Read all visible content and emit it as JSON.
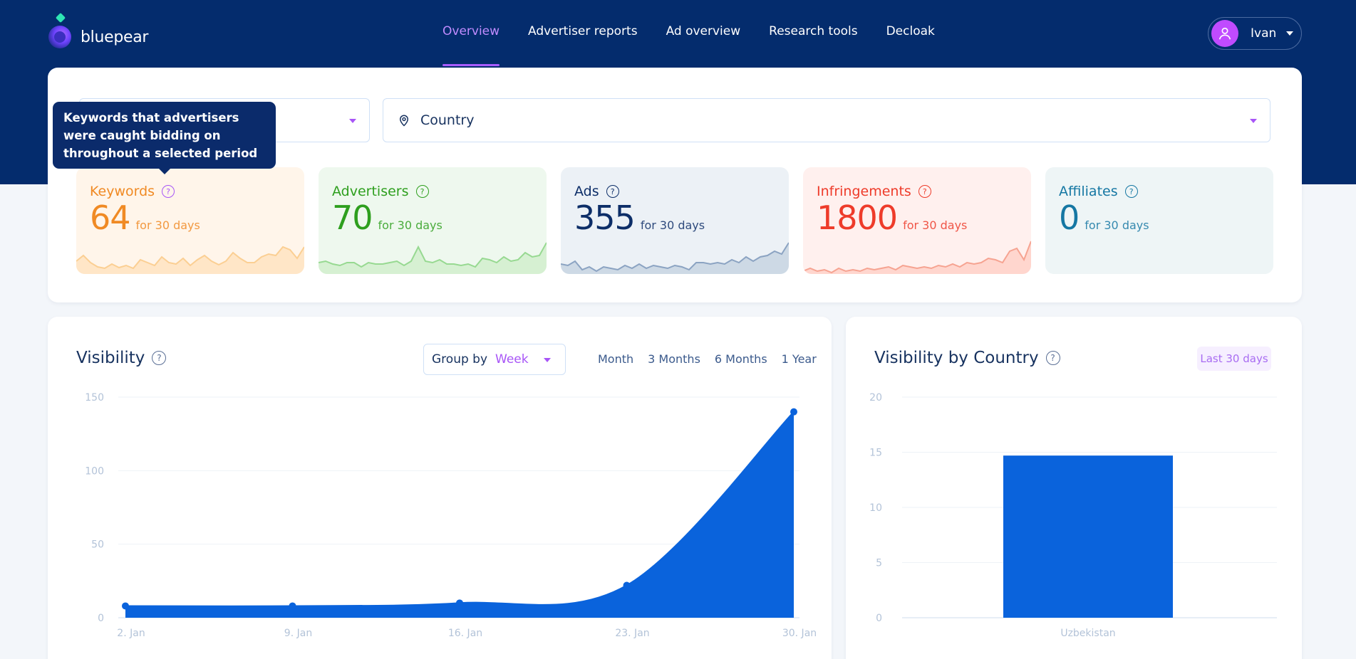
{
  "brand": {
    "name": "bluepear"
  },
  "nav": {
    "items": [
      {
        "label": "Overview",
        "active": true
      },
      {
        "label": "Advertiser reports"
      },
      {
        "label": "Ad overview"
      },
      {
        "label": "Research tools"
      },
      {
        "label": "Decloak"
      }
    ]
  },
  "user": {
    "name": "Ivan"
  },
  "filters": {
    "first_value": "",
    "country_placeholder": "Country"
  },
  "tooltip": {
    "text": "Keywords that advertisers were caught bidding on throughout a selected period"
  },
  "stats": [
    {
      "label": "Keywords",
      "value": "64",
      "period": "for 30 days",
      "color": "#f08a24",
      "bg": "#fff5ea",
      "spark_color": "#fbcf93",
      "fill": "#ffe6c7"
    },
    {
      "label": "Advertisers",
      "value": "70",
      "period": "for 30 days",
      "color": "#2e9f1e",
      "bg": "#eef8ee",
      "spark_color": "#97d991",
      "fill": "#d6f0d2"
    },
    {
      "label": "Ads",
      "value": "355",
      "period": "for 30 days",
      "color": "#0d2e68",
      "bg": "#ecf1f6",
      "spark_color": "#8ba3c2",
      "fill": "#cdd9e5"
    },
    {
      "label": "Infringements",
      "value": "1800",
      "period": "for 30 days",
      "color": "#ee3b2a",
      "bg": "#fff0ee",
      "spark_color": "#f6a391",
      "fill": "#ffd6ce"
    },
    {
      "label": "Affiliates",
      "value": "0",
      "period": "for 30 days",
      "color": "#1577a3",
      "bg": "#eef5f6",
      "spark_color": null,
      "fill": null
    }
  ],
  "visibility": {
    "title": "Visibility",
    "group_by_label": "Group by",
    "group_by_value": "Week",
    "ranges": [
      "Month",
      "3 Months",
      "6 Months",
      "1 Year"
    ],
    "accent": "#0a63dc"
  },
  "country": {
    "title": "Visibility by Country",
    "period_button": "Last 30 days"
  },
  "chart_data": [
    {
      "type": "area",
      "title": "Visibility",
      "x": [
        "2. Jan",
        "9. Jan",
        "16. Jan",
        "23. Jan",
        "30. Jan"
      ],
      "y": [
        8,
        8,
        10,
        22,
        140
      ],
      "ylim": [
        0,
        150
      ],
      "yticks": [
        0,
        50,
        100,
        150
      ],
      "grid": true
    },
    {
      "type": "bar",
      "title": "Visibility by Country",
      "categories": [
        "Uzbekistan"
      ],
      "values": [
        14.7
      ],
      "ylim": [
        0,
        20
      ],
      "yticks": [
        0,
        5,
        10,
        15,
        20
      ],
      "grid": true
    }
  ]
}
